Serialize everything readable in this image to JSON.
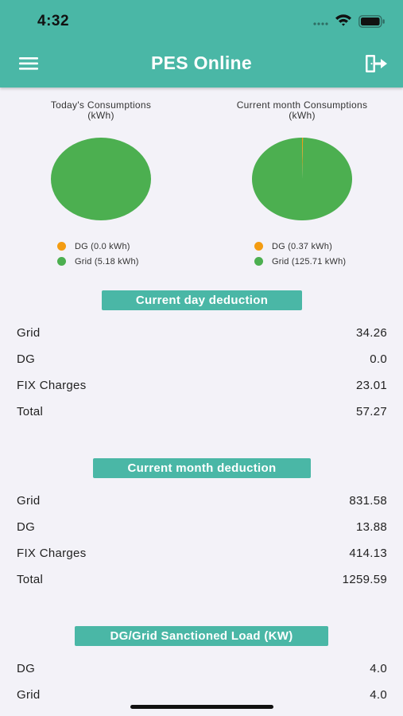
{
  "status_bar": {
    "time": "4:32"
  },
  "header": {
    "title": "PES Online",
    "menu_icon": "hamburger-menu-icon",
    "logout_icon": "logout-icon"
  },
  "colors": {
    "accent": "#4ab7a6",
    "dg": "#f39c12",
    "grid": "#4caf50"
  },
  "charts": {
    "today": {
      "title_line1": "Today's Consumptions",
      "title_line2": "(kWh)",
      "legend": [
        "DG (0.0 kWh)",
        "Grid (5.18 kWh)"
      ]
    },
    "month": {
      "title_line1": "Current month Consumptions",
      "title_line2": "(kWh)",
      "legend": [
        "DG (0.37 kWh)",
        "Grid (125.71 kWh)"
      ]
    }
  },
  "chart_data": [
    {
      "type": "pie",
      "title": "Today's Consumptions (kWh)",
      "labels": [
        "DG",
        "Grid"
      ],
      "values": [
        0.0,
        5.18
      ],
      "colors": [
        "#f39c12",
        "#4caf50"
      ],
      "legend": "bottom"
    },
    {
      "type": "pie",
      "title": "Current month Consumptions (kWh)",
      "labels": [
        "DG",
        "Grid"
      ],
      "values": [
        0.37,
        125.71
      ],
      "colors": [
        "#f39c12",
        "#4caf50"
      ],
      "legend": "bottom"
    }
  ],
  "day_deduction": {
    "header": "Current day deduction",
    "rows": [
      {
        "label": "Grid",
        "value": "34.26"
      },
      {
        "label": "DG",
        "value": "0.0"
      },
      {
        "label": "FIX Charges",
        "value": "23.01"
      },
      {
        "label": "Total",
        "value": "57.27"
      }
    ]
  },
  "month_deduction": {
    "header": "Current month deduction",
    "rows": [
      {
        "label": "Grid",
        "value": "831.58"
      },
      {
        "label": "DG",
        "value": "13.88"
      },
      {
        "label": "FIX Charges",
        "value": "414.13"
      },
      {
        "label": "Total",
        "value": "1259.59"
      }
    ]
  },
  "sanctioned_load": {
    "header": "DG/Grid Sanctioned Load (KW)",
    "rows": [
      {
        "label": "DG",
        "value": "4.0"
      },
      {
        "label": "Grid",
        "value": "4.0"
      }
    ]
  }
}
